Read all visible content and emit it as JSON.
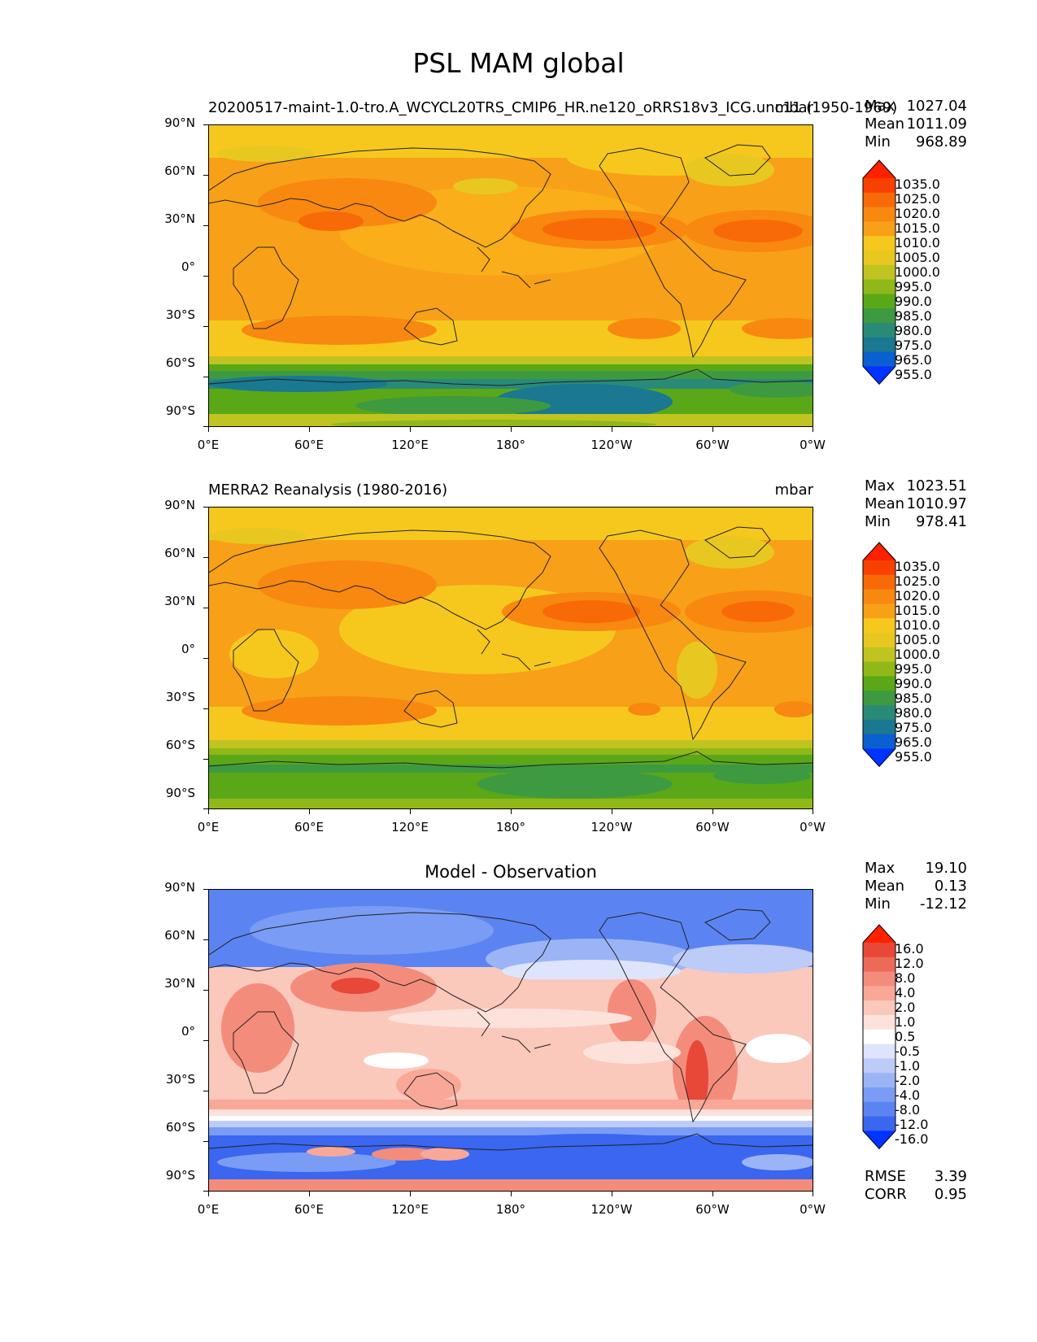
{
  "title": "PSL MAM global",
  "lat_labels": [
    "90°N",
    "60°N",
    "30°N",
    "0°",
    "30°S",
    "60°S",
    "90°S"
  ],
  "lon_labels": [
    "0°E",
    "60°E",
    "120°E",
    "180°",
    "120°W",
    "60°W",
    "0°W"
  ],
  "panels": [
    {
      "title_left": "20200517-maint-1.0-tro.A_WCYCL20TRS_CMIP6_HR.ne120_oRRS18v3_ICG.unc11 (1950-1969)",
      "title_center": "",
      "title_right": "mbar",
      "stats": [
        {
          "label": "Max",
          "value": "1027.04"
        },
        {
          "label": "Mean",
          "value": "1011.09"
        },
        {
          "label": "Min",
          "value": "968.89"
        }
      ],
      "colorbar_labels": [
        "1035.0",
        "1025.0",
        "1020.0",
        "1015.0",
        "1010.0",
        "1005.0",
        "1000.0",
        "995.0",
        "990.0",
        "985.0",
        "980.0",
        "975.0",
        "965.0",
        "955.0"
      ],
      "extra_stats": []
    },
    {
      "title_left": "MERRA2 Reanalysis (1980-2016)",
      "title_center": "",
      "title_right": "mbar",
      "stats": [
        {
          "label": "Max",
          "value": "1023.51"
        },
        {
          "label": "Mean",
          "value": "1010.97"
        },
        {
          "label": "Min",
          "value": "978.41"
        }
      ],
      "colorbar_labels": [
        "1035.0",
        "1025.0",
        "1020.0",
        "1015.0",
        "1010.0",
        "1005.0",
        "1000.0",
        "995.0",
        "990.0",
        "985.0",
        "980.0",
        "975.0",
        "965.0",
        "955.0"
      ],
      "extra_stats": []
    },
    {
      "title_left": "",
      "title_center": "Model - Observation",
      "title_right": "",
      "stats": [
        {
          "label": "Max",
          "value": "19.10"
        },
        {
          "label": "Mean",
          "value": "0.13"
        },
        {
          "label": "Min",
          "value": "-12.12"
        }
      ],
      "colorbar_labels": [
        "16.0",
        "12.0",
        "8.0",
        "4.0",
        "2.0",
        "1.0",
        "0.5",
        "-0.5",
        "-1.0",
        "-2.0",
        "-4.0",
        "-8.0",
        "-12.0",
        "-16.0"
      ],
      "extra_stats": [
        {
          "label": "RMSE",
          "value": "3.39"
        },
        {
          "label": "CORR",
          "value": "0.95"
        }
      ]
    }
  ],
  "colors": {
    "psl": [
      "#0033ff",
      "#0a60d0",
      "#1a7890",
      "#2a8a78",
      "#3e9a40",
      "#5aa818",
      "#90b818",
      "#c0c420",
      "#e8c820",
      "#f6c81e",
      "#f8a018",
      "#f88810",
      "#f86a08",
      "#f84000",
      "#ff2000"
    ],
    "diff": [
      "#0033ff",
      "#3a66f0",
      "#5b84f2",
      "#7a9cf4",
      "#9ab4f6",
      "#bccbf8",
      "#dde4fb",
      "#ffffff",
      "#fde2dc",
      "#fbc8bc",
      "#f9a898",
      "#f48c7c",
      "#ee6a58",
      "#e84838",
      "#ff2000"
    ]
  }
}
